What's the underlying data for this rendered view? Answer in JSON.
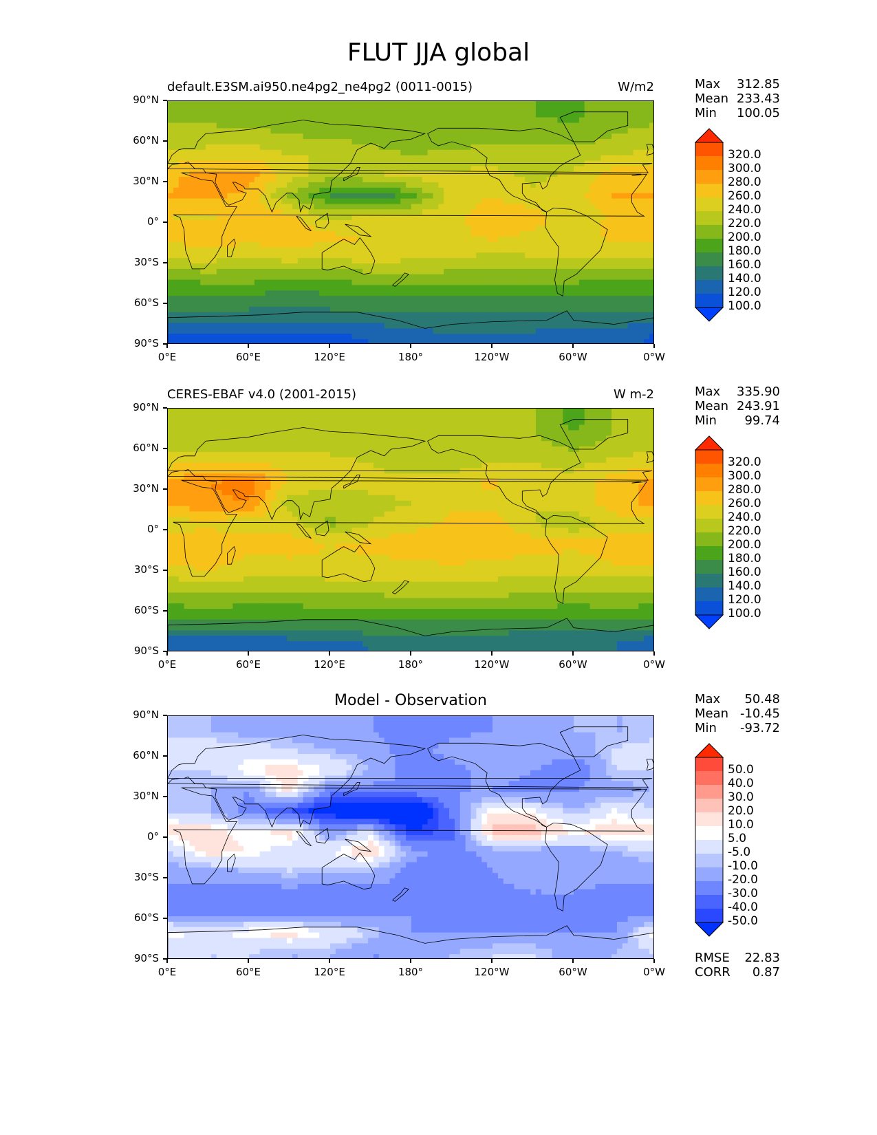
{
  "figure": {
    "title": "FLUT JJA global"
  },
  "axes": {
    "lat_labels": [
      "90°N",
      "60°N",
      "30°N",
      "0°",
      "30°S",
      "60°S",
      "90°S"
    ],
    "lon_labels": [
      "0°E",
      "60°E",
      "120°E",
      "180°",
      "120°W",
      "60°W",
      "0°W"
    ]
  },
  "panels": [
    {
      "title_left": "default.E3SM.ai950.ne4pg2_ne4pg2 (0011-0015)",
      "title_right": "W/m2",
      "title_center": "",
      "stats": [
        {
          "label": "Max",
          "value": "312.85"
        },
        {
          "label": "Mean",
          "value": "233.43"
        },
        {
          "label": "Min",
          "value": "100.05"
        }
      ],
      "colorbar_labels": [
        "320.0",
        "300.0",
        "280.0",
        "260.0",
        "240.0",
        "220.0",
        "200.0",
        "180.0",
        "160.0",
        "140.0",
        "120.0",
        "100.0"
      ],
      "colorbar_colors": [
        "#ff2a00",
        "#ff5500",
        "#ff7f00",
        "#ff9f10",
        "#f7c21a",
        "#dccf1f",
        "#b9c81d",
        "#86b81b",
        "#4ca41b",
        "#3a8c48",
        "#2a7874",
        "#1a64b0",
        "#0a50d8",
        "#0040ff"
      ]
    },
    {
      "title_left": "CERES-EBAF v4.0 (2001-2015)",
      "title_right": "W m-2",
      "title_center": "",
      "stats": [
        {
          "label": "Max",
          "value": "335.90"
        },
        {
          "label": "Mean",
          "value": "243.91"
        },
        {
          "label": "Min",
          "value": "99.74"
        }
      ],
      "colorbar_labels": [
        "320.0",
        "300.0",
        "280.0",
        "260.0",
        "240.0",
        "220.0",
        "200.0",
        "180.0",
        "160.0",
        "140.0",
        "120.0",
        "100.0"
      ],
      "colorbar_colors": [
        "#ff2a00",
        "#ff5500",
        "#ff7f00",
        "#ff9f10",
        "#f7c21a",
        "#dccf1f",
        "#b9c81d",
        "#86b81b",
        "#4ca41b",
        "#3a8c48",
        "#2a7874",
        "#1a64b0",
        "#0a50d8",
        "#0040ff"
      ]
    },
    {
      "title_left": "",
      "title_right": "",
      "title_center": "Model - Observation",
      "stats": [
        {
          "label": "Max",
          "value": "50.48"
        },
        {
          "label": "Mean",
          "value": "-10.45"
        },
        {
          "label": "Min",
          "value": "-93.72"
        }
      ],
      "extra_stats": [
        {
          "label": "RMSE",
          "value": "22.83"
        },
        {
          "label": "CORR",
          "value": "0.87"
        }
      ],
      "colorbar_labels": [
        "50.0",
        "40.0",
        "30.0",
        "20.0",
        "10.0",
        "5.0",
        "-5.0",
        "-10.0",
        "-20.0",
        "-30.0",
        "-40.0",
        "-50.0"
      ],
      "colorbar_colors": [
        "#ff2a00",
        "#ff4b3a",
        "#ff7060",
        "#ff9a8c",
        "#ffc2b8",
        "#ffe4de",
        "#ffffff",
        "#dde4ff",
        "#b8c6ff",
        "#94a8ff",
        "#6e86ff",
        "#4a64ff",
        "#2a48ff",
        "#0032ff"
      ]
    }
  ],
  "chart_data": [
    {
      "type": "heatmap",
      "title": "default.E3SM.ai950.ne4pg2_ne4pg2 (0011-0015)",
      "units": "W/m2",
      "x_range": [
        0,
        360
      ],
      "y_range": [
        -90,
        90
      ],
      "levels": [
        100,
        120,
        140,
        160,
        180,
        200,
        220,
        240,
        260,
        280,
        300,
        320
      ],
      "stats": {
        "max": 312.85,
        "mean": 233.43,
        "min": 100.05
      },
      "lat_bands": [
        -85,
        -70,
        -55,
        -40,
        -25,
        -10,
        5,
        20,
        35,
        50,
        65,
        80
      ],
      "lon_bands": [
        0,
        30,
        60,
        90,
        120,
        150,
        180,
        210,
        240,
        270,
        300,
        330
      ],
      "values": [
        [
          115,
          115,
          115,
          115,
          115,
          120,
          130,
          135,
          135,
          135,
          130,
          130
        ],
        [
          150,
          150,
          150,
          150,
          150,
          150,
          155,
          155,
          155,
          150,
          150,
          150
        ],
        [
          175,
          175,
          175,
          170,
          175,
          180,
          180,
          180,
          180,
          180,
          175,
          175
        ],
        [
          205,
          210,
          210,
          205,
          205,
          210,
          215,
          210,
          210,
          210,
          210,
          205
        ],
        [
          245,
          250,
          240,
          250,
          245,
          250,
          245,
          245,
          235,
          240,
          240,
          245
        ],
        [
          265,
          275,
          270,
          275,
          265,
          260,
          245,
          255,
          265,
          255,
          250,
          265
        ],
        [
          260,
          255,
          275,
          265,
          230,
          245,
          245,
          255,
          270,
          270,
          245,
          265
        ],
        [
          280,
          285,
          275,
          215,
          180,
          165,
          190,
          250,
          260,
          245,
          250,
          280
        ],
        [
          275,
          290,
          290,
          250,
          225,
          235,
          250,
          245,
          250,
          235,
          245,
          270
        ],
        [
          245,
          250,
          255,
          240,
          240,
          230,
          220,
          225,
          225,
          225,
          230,
          240
        ],
        [
          225,
          225,
          225,
          220,
          215,
          210,
          205,
          210,
          215,
          215,
          205,
          220
        ],
        [
          215,
          215,
          210,
          210,
          205,
          205,
          200,
          200,
          205,
          200,
          195,
          210
        ]
      ]
    },
    {
      "type": "heatmap",
      "title": "CERES-EBAF v4.0 (2001-2015)",
      "units": "W m-2",
      "x_range": [
        0,
        360
      ],
      "y_range": [
        -90,
        90
      ],
      "levels": [
        100,
        120,
        140,
        160,
        180,
        200,
        220,
        240,
        260,
        280,
        300,
        320
      ],
      "stats": {
        "max": 335.9,
        "mean": 243.91,
        "min": 99.74
      },
      "lat_bands": [
        -85,
        -70,
        -55,
        -40,
        -25,
        -10,
        5,
        20,
        35,
        50,
        65,
        80
      ],
      "lon_bands": [
        0,
        30,
        60,
        90,
        120,
        150,
        180,
        210,
        240,
        270,
        300,
        330
      ],
      "values": [
        [
          120,
          120,
          120,
          125,
          125,
          140,
          150,
          145,
          140,
          140,
          145,
          140
        ],
        [
          170,
          175,
          170,
          170,
          175,
          175,
          175,
          175,
          175,
          170,
          170,
          170
        ],
        [
          200,
          205,
          200,
          200,
          205,
          205,
          210,
          210,
          210,
          205,
          200,
          205
        ],
        [
          230,
          235,
          235,
          230,
          235,
          235,
          235,
          235,
          235,
          230,
          230,
          230
        ],
        [
          260,
          270,
          250,
          255,
          255,
          255,
          255,
          260,
          255,
          250,
          250,
          260
        ],
        [
          270,
          275,
          275,
          270,
          260,
          265,
          275,
          280,
          280,
          270,
          265,
          270
        ],
        [
          250,
          255,
          245,
          250,
          215,
          240,
          250,
          265,
          270,
          240,
          225,
          250
        ],
        [
          285,
          295,
          300,
          230,
          225,
          235,
          240,
          255,
          255,
          240,
          250,
          270
        ],
        [
          285,
          300,
          310,
          255,
          245,
          245,
          245,
          250,
          265,
          245,
          245,
          275
        ],
        [
          255,
          260,
          260,
          255,
          250,
          240,
          230,
          230,
          240,
          240,
          235,
          245
        ],
        [
          225,
          225,
          225,
          225,
          225,
          220,
          220,
          225,
          225,
          225,
          210,
          225
        ],
        [
          225,
          225,
          225,
          225,
          225,
          225,
          225,
          225,
          225,
          220,
          190,
          220
        ]
      ]
    },
    {
      "type": "heatmap",
      "title": "Model - Observation",
      "units": "",
      "x_range": [
        0,
        360
      ],
      "y_range": [
        -90,
        90
      ],
      "levels": [
        -50,
        -40,
        -30,
        -20,
        -10,
        -5,
        5,
        10,
        20,
        30,
        40,
        50
      ],
      "stats": {
        "max": 50.48,
        "mean": -10.45,
        "min": -93.72,
        "rmse": 22.83,
        "corr": 0.87
      },
      "lat_bands": [
        -85,
        -70,
        -55,
        -40,
        -25,
        -10,
        5,
        20,
        35,
        50,
        65,
        80
      ],
      "lon_bands": [
        0,
        30,
        60,
        90,
        120,
        150,
        180,
        210,
        240,
        270,
        300,
        330
      ],
      "values": [
        [
          -5,
          -5,
          -5,
          -10,
          -10,
          -20,
          -20,
          -10,
          -5,
          -5,
          -15,
          -10
        ],
        [
          10,
          0,
          10,
          15,
          5,
          -5,
          -20,
          -20,
          -20,
          -20,
          -20,
          -20
        ],
        [
          -25,
          -25,
          -25,
          -30,
          -30,
          -25,
          -20,
          -25,
          -25,
          -25,
          -20,
          -25
        ],
        [
          -25,
          -25,
          -25,
          -25,
          -25,
          -25,
          -20,
          -25,
          -25,
          -20,
          -20,
          -25
        ],
        [
          -15,
          -15,
          -10,
          -5,
          -10,
          -10,
          -25,
          -30,
          -20,
          -10,
          -10,
          -15
        ],
        [
          -5,
          15,
          10,
          0,
          5,
          20,
          -15,
          -25,
          -15,
          -15,
          -15,
          -10
        ],
        [
          15,
          15,
          5,
          15,
          -20,
          0,
          -50,
          -35,
          25,
          25,
          10,
          15
        ],
        [
          -5,
          -10,
          -25,
          -40,
          -60,
          -75,
          -80,
          -25,
          10,
          5,
          -10,
          5
        ],
        [
          -10,
          -10,
          -20,
          15,
          -25,
          -25,
          -20,
          -20,
          -20,
          -25,
          -20,
          -15
        ],
        [
          -5,
          -5,
          10,
          15,
          5,
          -10,
          -25,
          -25,
          -15,
          -20,
          -30,
          -5
        ],
        [
          0,
          0,
          0,
          -5,
          -10,
          -15,
          -25,
          -15,
          -10,
          -10,
          -15,
          -5
        ],
        [
          -10,
          -10,
          -15,
          -15,
          -20,
          -20,
          -25,
          -25,
          -20,
          -20,
          -10,
          -10
        ]
      ]
    }
  ]
}
